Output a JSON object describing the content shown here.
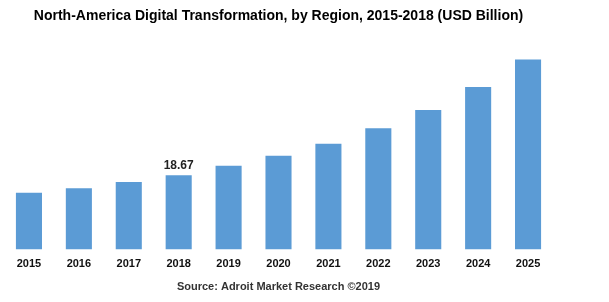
{
  "chart_data": {
    "type": "bar",
    "title": "North-America Digital Transformation, by Region, 2015-2018 (USD Billion)",
    "source": "Source: Adroit Market Research ©2019",
    "categories": [
      "2015",
      "2016",
      "2017",
      "2018",
      "2019",
      "2020",
      "2021",
      "2022",
      "2023",
      "2024",
      "2025"
    ],
    "values": [
      14.3,
      15.4,
      17.0,
      18.67,
      21.1,
      23.6,
      26.6,
      30.5,
      35.1,
      40.9,
      47.8
    ],
    "value_labels": [
      null,
      null,
      null,
      "18.67",
      null,
      null,
      null,
      null,
      null,
      null,
      null
    ],
    "color": "#5b9bd5",
    "ylim": [
      0,
      50
    ],
    "grid": false,
    "tick_labels": "x"
  }
}
